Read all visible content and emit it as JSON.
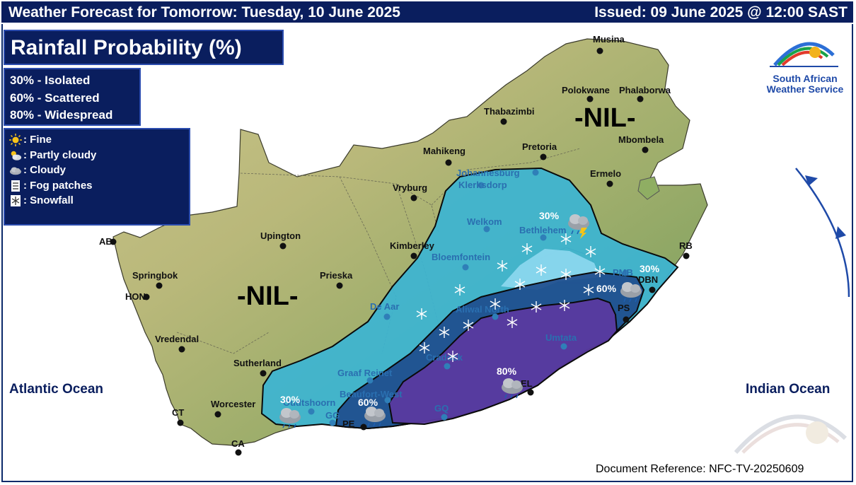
{
  "header": {
    "title": "Weather Forecast for Tomorrow: Tuesday, 10 June 2025",
    "issued": "Issued: 09 June 2025 @ 12:00 SAST"
  },
  "map_title": "Rainfall Probability (%)",
  "probability_legend": [
    "30% - Isolated",
    "60% - Scattered",
    "80% - Widespread"
  ],
  "symbol_legend": [
    {
      "icon": "sun-icon",
      "label": ": Fine"
    },
    {
      "icon": "partly-cloudy-icon",
      "label": ": Partly cloudy"
    },
    {
      "icon": "cloud-icon",
      "label": ": Cloudy"
    },
    {
      "icon": "fog-icon",
      "label": ": Fog patches"
    },
    {
      "icon": "snowflake-icon",
      "label": ": Snowfall"
    }
  ],
  "logo": {
    "line1": "South African",
    "line2": "Weather Service"
  },
  "oceans": {
    "atlantic": "Atlantic Ocean",
    "indian": "Indian Ocean"
  },
  "nil_labels": [
    "-NIL-",
    "-NIL-"
  ],
  "zones": [
    {
      "probability": "30%",
      "color": "#3cb4d2"
    },
    {
      "probability": "60%",
      "color": "#1e4a8c"
    },
    {
      "probability": "80%",
      "color": "#5a3aa0"
    }
  ],
  "zone_labels": [
    "30%",
    "60%",
    "80%",
    "60%",
    "30%",
    "30%"
  ],
  "places": {
    "musina": "Musina",
    "polokwane": "Polokwane",
    "phalaborwa": "Phalaborwa",
    "thabazimbi": "Thabazimbi",
    "mbombela": "Mbombela",
    "mahikeng": "Mahikeng",
    "pretoria": "Pretoria",
    "johannesburg": "Johannesburg",
    "ermelo": "Ermelo",
    "klerksdorp": "Klerksdorp",
    "vryburg": "Vryburg",
    "welkom": "Welkom",
    "bethlehem": "Bethlehem",
    "upington": "Upington",
    "kimberley": "Kimberley",
    "bloemfontein": "Bloemfontein",
    "ab": "AB",
    "springbok": "Springbok",
    "prieska": "Prieska",
    "hon": "HON",
    "rb": "RB",
    "pmb": "PMB",
    "dbn": "DBN",
    "de_aar": "De Aar",
    "aliwal_north": "Aliwal North",
    "vredendal": "Vredendal",
    "umtata": "Umtata",
    "sutherland": "Sutherland",
    "graaff_reinet": "Graaf Reinet",
    "cradock": "Cradock",
    "beaufort_west": "Beaufort-West",
    "oudtshoorn": "Oudtshoorn",
    "worcester": "Worcester",
    "ct": "CT",
    "ca": "CA",
    "gg": "GG",
    "pe": "PE",
    "el": "EL",
    "gq": "GQ",
    "ps": "PS"
  },
  "doc_ref": "Document Reference: NFC-TV-20250609"
}
